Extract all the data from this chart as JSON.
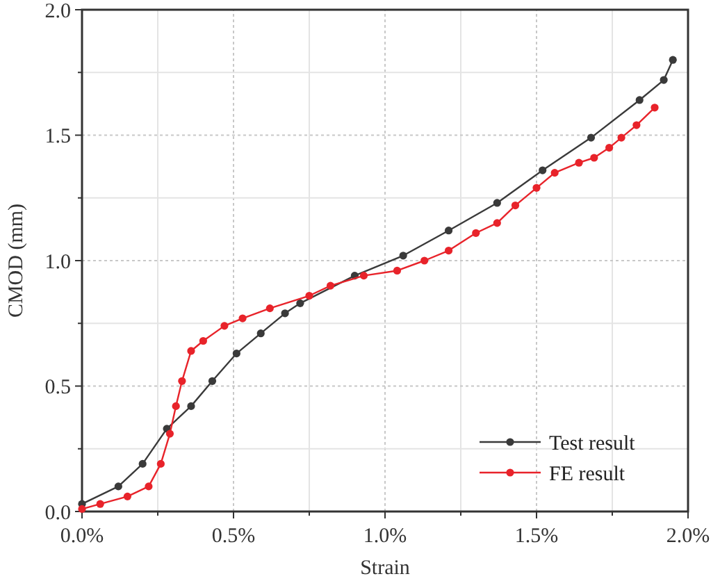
{
  "chart_data": {
    "type": "line",
    "xlabel": "Strain",
    "ylabel": "CMOD (mm)",
    "xlim": [
      0,
      2
    ],
    "ylim": [
      0,
      2
    ],
    "xticks": [
      {
        "value": 0,
        "label": "0.0%"
      },
      {
        "value": 0.25,
        "label": null
      },
      {
        "value": 0.5,
        "label": "0.5%"
      },
      {
        "value": 0.75,
        "label": null
      },
      {
        "value": 1,
        "label": "1.0%"
      },
      {
        "value": 1.25,
        "label": null
      },
      {
        "value": 1.5,
        "label": "1.5%"
      },
      {
        "value": 1.75,
        "label": null
      },
      {
        "value": 2,
        "label": "2.0%"
      }
    ],
    "yticks": [
      {
        "value": 0,
        "label": "0.0"
      },
      {
        "value": 0.25,
        "label": null
      },
      {
        "value": 0.5,
        "label": "0.5"
      },
      {
        "value": 0.75,
        "label": null
      },
      {
        "value": 1,
        "label": "1.0"
      },
      {
        "value": 1.25,
        "label": null
      },
      {
        "value": 1.5,
        "label": "1.5"
      },
      {
        "value": 1.75,
        "label": null
      },
      {
        "value": 2,
        "label": "2.0"
      }
    ],
    "grid": true,
    "legend": "bottom right",
    "marker": "circle",
    "line_style": "solid",
    "series": [
      {
        "name": "Test result",
        "color": "#3a3a3a",
        "x": [
          0,
          0.12,
          0.2,
          0.28,
          0.36,
          0.43,
          0.51,
          0.59,
          0.67,
          0.72,
          0.9,
          1.06,
          1.21,
          1.37,
          1.52,
          1.68,
          1.84,
          1.92,
          1.95
        ],
        "values": [
          0.03,
          0.1,
          0.19,
          0.33,
          0.42,
          0.52,
          0.63,
          0.71,
          0.79,
          0.83,
          0.94,
          1.02,
          1.12,
          1.23,
          1.36,
          1.49,
          1.64,
          1.72,
          1.8
        ]
      },
      {
        "name": "FE result",
        "color": "#e8232a",
        "x": [
          0,
          0.06,
          0.15,
          0.22,
          0.26,
          0.29,
          0.31,
          0.33,
          0.36,
          0.4,
          0.47,
          0.53,
          0.62,
          0.75,
          0.82,
          0.93,
          1.04,
          1.13,
          1.21,
          1.3,
          1.37,
          1.43,
          1.5,
          1.56,
          1.64,
          1.69,
          1.74,
          1.78,
          1.83,
          1.89
        ],
        "values": [
          0.01,
          0.03,
          0.06,
          0.1,
          0.19,
          0.31,
          0.42,
          0.52,
          0.64,
          0.68,
          0.74,
          0.77,
          0.81,
          0.86,
          0.9,
          0.94,
          0.96,
          1.0,
          1.04,
          1.11,
          1.15,
          1.22,
          1.29,
          1.35,
          1.39,
          1.41,
          1.45,
          1.49,
          1.54,
          1.61
        ]
      }
    ]
  }
}
